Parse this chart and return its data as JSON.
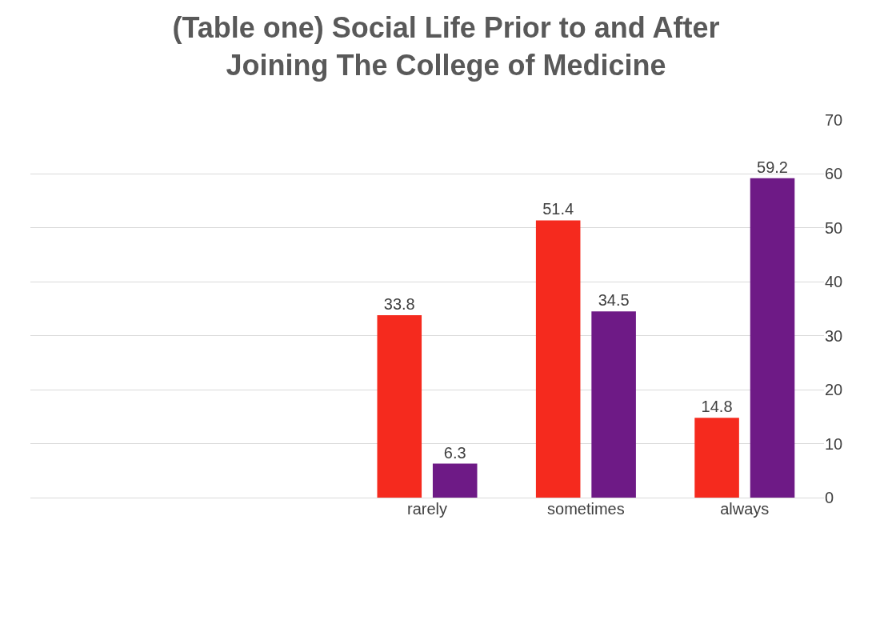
{
  "chart_data": {
    "type": "bar",
    "title": "(Table one) Social Life Prior to and After\nJoining The College of Medicine",
    "categories": [
      null,
      null,
      "rarely",
      "sometimes",
      "always"
    ],
    "series": [
      {
        "color": "#f52a1e",
        "values": [
          null,
          null,
          33.8,
          51.4,
          14.8
        ]
      },
      {
        "color": "#6e1a86",
        "values": [
          null,
          null,
          6.3,
          34.5,
          59.2
        ]
      }
    ],
    "ylim": [
      0,
      70
    ],
    "yticks": [
      0,
      10,
      20,
      30,
      40,
      50,
      60,
      70
    ],
    "grid": "y",
    "data_labels": true
  }
}
